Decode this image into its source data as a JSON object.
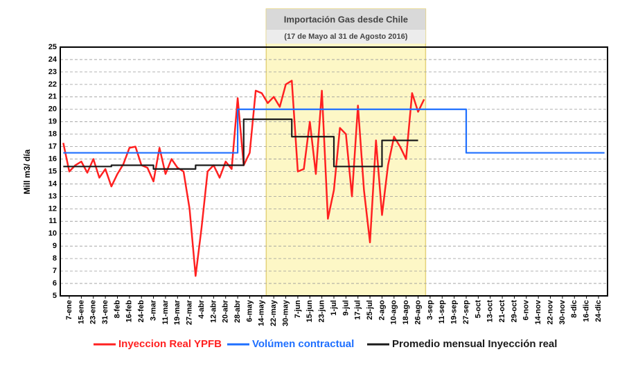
{
  "chart_data": {
    "type": "line",
    "annotation": {
      "title": "Importación Gas desde Chile",
      "subtitle": "(17 de Mayo al 31 de Agosto 2016)"
    },
    "y_label": "Mill m3/ día",
    "categories": [
      null,
      "7-ene",
      null,
      "15-ene",
      null,
      "23-ene",
      null,
      "31-ene",
      null,
      "8-feb",
      null,
      "16-feb",
      null,
      "24-feb",
      null,
      "3-mar",
      null,
      "11-mar",
      null,
      "19-mar",
      null,
      "27-mar",
      null,
      "4-abr",
      null,
      "12-abr",
      null,
      "20-abr",
      null,
      "28-abr",
      null,
      "6-may",
      null,
      "14-may",
      null,
      "22-may",
      null,
      "30-may",
      null,
      "7-jun",
      null,
      "15-jun",
      null,
      "23-jun",
      null,
      "1-jul",
      null,
      "9-jul",
      null,
      "17-jul",
      null,
      "25-jul",
      null,
      "2-ago",
      null,
      "10-ago",
      null,
      "18-ago",
      null,
      "26-ago",
      null,
      "3-sep",
      null,
      "11-sep",
      null,
      "19-sep",
      null,
      "27-sep",
      null,
      "5-oct",
      null,
      "13-oct",
      null,
      "21-oct",
      null,
      "29-oct",
      null,
      "6-nov",
      null,
      "14-nov",
      null,
      "22-nov",
      null,
      "30-nov",
      null,
      "8-dic",
      null,
      "16-dic",
      null,
      "24-dic",
      null
    ],
    "series": [
      {
        "name": "Inyeccion Real YPFB",
        "color": "#ff2020",
        "step": false,
        "values": [
          17.3,
          15.0,
          15.5,
          15.8,
          14.9,
          16.0,
          14.5,
          15.2,
          13.8,
          14.8,
          15.6,
          16.9,
          17.0,
          15.5,
          15.3,
          14.2,
          16.9,
          14.8,
          16.0,
          15.3,
          15.0,
          12.0,
          6.6,
          10.5,
          15.0,
          15.5,
          14.5,
          15.8,
          15.2,
          20.9,
          15.5,
          16.5,
          21.5,
          21.3,
          20.5,
          21.0,
          20.2,
          22.0,
          22.3,
          15.0,
          15.2,
          19.0,
          14.8,
          21.5,
          11.2,
          13.5,
          18.5,
          18.0,
          13.0,
          20.3,
          13.5,
          9.3,
          17.5,
          11.5,
          15.5,
          17.8,
          17.0,
          16.0,
          21.3,
          19.8,
          20.8,
          null,
          null,
          null,
          null,
          null,
          null,
          null,
          null,
          null,
          null,
          null,
          null,
          null,
          null,
          null,
          null,
          null,
          null,
          null,
          null,
          null,
          null,
          null,
          null,
          null,
          null,
          null,
          null,
          null,
          null
        ]
      },
      {
        "name": "Volúmen contractual",
        "color": "#1e6fff",
        "step": true,
        "values": [
          16.5,
          16.5,
          16.5,
          16.5,
          16.5,
          16.5,
          16.5,
          16.5,
          16.5,
          16.5,
          16.5,
          16.5,
          16.5,
          16.5,
          16.5,
          16.5,
          16.5,
          16.5,
          16.5,
          16.5,
          16.5,
          16.5,
          16.5,
          16.5,
          16.5,
          16.5,
          16.5,
          16.5,
          16.5,
          20.0,
          20.0,
          20.0,
          20.0,
          20.0,
          20.0,
          20.0,
          20.0,
          20.0,
          20.0,
          20.0,
          20.0,
          20.0,
          20.0,
          20.0,
          20.0,
          20.0,
          20.0,
          20.0,
          20.0,
          20.0,
          20.0,
          20.0,
          20.0,
          20.0,
          20.0,
          20.0,
          20.0,
          20.0,
          20.0,
          20.0,
          20.0,
          20.0,
          20.0,
          20.0,
          20.0,
          20.0,
          20.0,
          16.5,
          16.5,
          16.5,
          16.5,
          16.5,
          16.5,
          16.5,
          16.5,
          16.5,
          16.5,
          16.5,
          16.5,
          16.5,
          16.5,
          16.5,
          16.5,
          16.5,
          16.5,
          16.5,
          16.5,
          16.5,
          16.5,
          16.5,
          16.5
        ]
      },
      {
        "name": "Promedio mensual Inyección real",
        "color": "#1a1a1a",
        "step": true,
        "values": [
          15.4,
          15.4,
          15.4,
          15.4,
          15.4,
          15.4,
          15.4,
          15.4,
          15.5,
          15.5,
          15.5,
          15.5,
          15.5,
          15.5,
          15.5,
          15.2,
          15.2,
          15.2,
          15.2,
          15.2,
          15.2,
          15.2,
          15.5,
          15.5,
          15.5,
          15.5,
          15.5,
          15.5,
          15.5,
          15.5,
          19.2,
          19.2,
          19.2,
          19.2,
          19.2,
          19.2,
          19.2,
          19.2,
          17.8,
          17.8,
          17.8,
          17.8,
          17.8,
          17.8,
          17.8,
          15.4,
          15.4,
          15.4,
          15.4,
          15.4,
          15.4,
          15.4,
          15.4,
          17.5,
          17.5,
          17.5,
          17.5,
          17.5,
          17.5,
          17.5,
          null,
          null,
          null,
          null,
          null,
          null,
          null,
          null,
          null,
          null,
          null,
          null,
          null,
          null,
          null,
          null,
          null,
          null,
          null,
          null,
          null,
          null,
          null,
          null,
          null,
          null,
          null,
          null,
          null,
          null,
          null
        ]
      }
    ],
    "ylim": [
      5,
      25
    ],
    "yticks": [
      5,
      6,
      7,
      8,
      9,
      10,
      11,
      12,
      13,
      14,
      15,
      16,
      17,
      18,
      19,
      20,
      21,
      22,
      23,
      24,
      25
    ],
    "grid": true,
    "legend": "bottom"
  }
}
